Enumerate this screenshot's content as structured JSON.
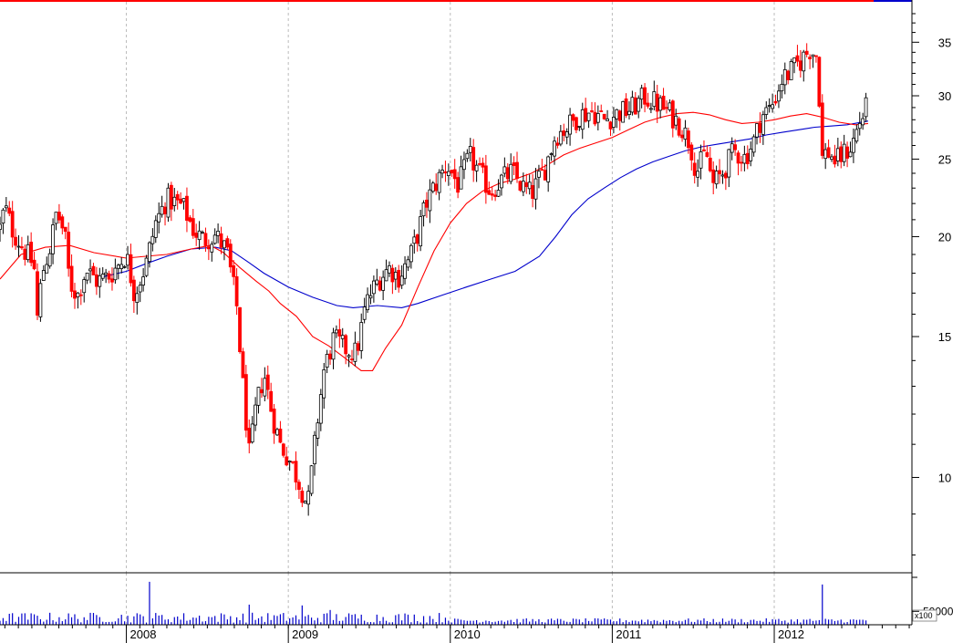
{
  "chart_data": {
    "type": "candlestick",
    "title": "",
    "xlabel": "",
    "ylabel": "",
    "price_scale": "log",
    "ylim": [
      7.6,
      38.5
    ],
    "y_ticks": [
      "10",
      "15",
      "20",
      "25",
      "30",
      "35"
    ],
    "x_range": [
      2007.22,
      2012.85
    ],
    "x_ticks": [
      "2008",
      "2009",
      "2010",
      "2011",
      "2012"
    ],
    "grid": "vertical dashed at year boundaries",
    "colors": {
      "up_candle": "#000000",
      "down_candle": "#ff0000",
      "ma_short": "#ff0000",
      "ma_long": "#0000cc",
      "volume": "#0000cc",
      "grid": "#bbbbbb",
      "top_bar": "#ff0000"
    },
    "price_keypoints": [
      [
        2007.22,
        20.5
      ],
      [
        2007.25,
        21.8
      ],
      [
        2007.3,
        20.3
      ],
      [
        2007.38,
        19.1
      ],
      [
        2007.43,
        18.4
      ],
      [
        2007.45,
        15.8
      ],
      [
        2007.48,
        18.0
      ],
      [
        2007.53,
        19.4
      ],
      [
        2007.57,
        21.5
      ],
      [
        2007.62,
        20.1
      ],
      [
        2007.65,
        17.5
      ],
      [
        2007.7,
        16.9
      ],
      [
        2007.75,
        18.2
      ],
      [
        2007.82,
        17.6
      ],
      [
        2007.9,
        17.9
      ],
      [
        2008.0,
        19.0
      ],
      [
        2008.05,
        17.0
      ],
      [
        2008.12,
        18.4
      ],
      [
        2008.18,
        20.8
      ],
      [
        2008.25,
        22.3
      ],
      [
        2008.35,
        21.8
      ],
      [
        2008.42,
        20.3
      ],
      [
        2008.48,
        19.8
      ],
      [
        2008.55,
        20.1
      ],
      [
        2008.62,
        19.2
      ],
      [
        2008.68,
        16.5
      ],
      [
        2008.72,
        13.0
      ],
      [
        2008.76,
        10.6
      ],
      [
        2008.8,
        12.2
      ],
      [
        2008.85,
        13.5
      ],
      [
        2008.9,
        12.0
      ],
      [
        2008.95,
        11.0
      ],
      [
        2009.02,
        10.4
      ],
      [
        2009.08,
        9.7
      ],
      [
        2009.12,
        9.2
      ],
      [
        2009.18,
        11.8
      ],
      [
        2009.22,
        13.6
      ],
      [
        2009.28,
        14.9
      ],
      [
        2009.35,
        14.5
      ],
      [
        2009.42,
        14.3
      ],
      [
        2009.48,
        16.5
      ],
      [
        2009.55,
        17.6
      ],
      [
        2009.62,
        18.3
      ],
      [
        2009.68,
        17.8
      ],
      [
        2009.75,
        18.8
      ],
      [
        2009.8,
        20.2
      ],
      [
        2009.85,
        22.0
      ],
      [
        2009.92,
        23.5
      ],
      [
        2009.98,
        24.6
      ],
      [
        2010.05,
        23.2
      ],
      [
        2010.12,
        25.2
      ],
      [
        2010.18,
        24.0
      ],
      [
        2010.25,
        22.8
      ],
      [
        2010.32,
        23.6
      ],
      [
        2010.38,
        24.1
      ],
      [
        2010.45,
        23.0
      ],
      [
        2010.5,
        22.6
      ],
      [
        2010.58,
        24.2
      ],
      [
        2010.65,
        26.8
      ],
      [
        2010.72,
        27.4
      ],
      [
        2010.8,
        28.4
      ],
      [
        2010.88,
        28.7
      ],
      [
        2010.95,
        28.0
      ],
      [
        2011.05,
        28.6
      ],
      [
        2011.12,
        28.9
      ],
      [
        2011.2,
        29.9
      ],
      [
        2011.28,
        29.3
      ],
      [
        2011.35,
        28.6
      ],
      [
        2011.42,
        27.6
      ],
      [
        2011.48,
        26.2
      ],
      [
        2011.52,
        24.1
      ],
      [
        2011.58,
        25.5
      ],
      [
        2011.62,
        23.2
      ],
      [
        2011.68,
        24.0
      ],
      [
        2011.75,
        25.6
      ],
      [
        2011.82,
        25.1
      ],
      [
        2011.88,
        26.5
      ],
      [
        2011.92,
        28.3
      ],
      [
        2011.98,
        29.0
      ],
      [
        2012.05,
        31.5
      ],
      [
        2012.12,
        32.4
      ],
      [
        2012.18,
        33.5
      ],
      [
        2012.22,
        34.3
      ],
      [
        2012.27,
        33.6
      ],
      [
        2012.29,
        25.0
      ],
      [
        2012.33,
        25.6
      ],
      [
        2012.38,
        24.8
      ],
      [
        2012.43,
        25.4
      ],
      [
        2012.48,
        26.0
      ],
      [
        2012.52,
        27.6
      ],
      [
        2012.58,
        29.3
      ]
    ],
    "ma_short": [
      [
        2007.22,
        17.7
      ],
      [
        2007.35,
        19.0
      ],
      [
        2007.5,
        19.4
      ],
      [
        2007.65,
        19.5
      ],
      [
        2007.8,
        19.1
      ],
      [
        2008.0,
        18.8
      ],
      [
        2008.12,
        18.9
      ],
      [
        2008.25,
        19.0
      ],
      [
        2008.4,
        19.3
      ],
      [
        2008.52,
        19.5
      ],
      [
        2008.6,
        19.1
      ],
      [
        2008.7,
        18.3
      ],
      [
        2008.8,
        17.6
      ],
      [
        2008.88,
        17.1
      ],
      [
        2008.95,
        16.5
      ],
      [
        2009.05,
        15.9
      ],
      [
        2009.15,
        15.0
      ],
      [
        2009.25,
        14.6
      ],
      [
        2009.35,
        14.1
      ],
      [
        2009.45,
        13.6
      ],
      [
        2009.52,
        13.6
      ],
      [
        2009.6,
        14.5
      ],
      [
        2009.7,
        15.5
      ],
      [
        2009.8,
        17.3
      ],
      [
        2009.9,
        19.2
      ],
      [
        2010.0,
        20.8
      ],
      [
        2010.1,
        22.0
      ],
      [
        2010.2,
        22.8
      ],
      [
        2010.3,
        23.3
      ],
      [
        2010.4,
        23.6
      ],
      [
        2010.5,
        24.0
      ],
      [
        2010.6,
        24.6
      ],
      [
        2010.7,
        25.3
      ],
      [
        2010.8,
        25.8
      ],
      [
        2010.9,
        26.2
      ],
      [
        2011.0,
        26.6
      ],
      [
        2011.1,
        27.2
      ],
      [
        2011.2,
        27.8
      ],
      [
        2011.3,
        28.2
      ],
      [
        2011.4,
        28.5
      ],
      [
        2011.5,
        28.6
      ],
      [
        2011.6,
        28.4
      ],
      [
        2011.7,
        28.0
      ],
      [
        2011.8,
        27.7
      ],
      [
        2011.9,
        27.8
      ],
      [
        2012.0,
        28.0
      ],
      [
        2012.1,
        28.3
      ],
      [
        2012.2,
        28.5
      ],
      [
        2012.3,
        28.2
      ],
      [
        2012.4,
        27.8
      ],
      [
        2012.5,
        27.6
      ],
      [
        2012.58,
        27.7
      ]
    ],
    "ma_long": [
      [
        2007.85,
        17.8
      ],
      [
        2008.0,
        18.1
      ],
      [
        2008.12,
        18.5
      ],
      [
        2008.25,
        18.9
      ],
      [
        2008.4,
        19.3
      ],
      [
        2008.55,
        19.4
      ],
      [
        2008.65,
        19.2
      ],
      [
        2008.75,
        18.6
      ],
      [
        2008.85,
        18.0
      ],
      [
        2009.0,
        17.3
      ],
      [
        2009.15,
        16.8
      ],
      [
        2009.3,
        16.4
      ],
      [
        2009.4,
        16.3
      ],
      [
        2009.55,
        16.4
      ],
      [
        2009.7,
        16.3
      ],
      [
        2009.8,
        16.5
      ],
      [
        2009.95,
        16.9
      ],
      [
        2010.1,
        17.3
      ],
      [
        2010.25,
        17.7
      ],
      [
        2010.4,
        18.1
      ],
      [
        2010.55,
        18.9
      ],
      [
        2010.65,
        20.0
      ],
      [
        2010.75,
        21.3
      ],
      [
        2010.85,
        22.3
      ],
      [
        2010.95,
        23.0
      ],
      [
        2011.05,
        23.7
      ],
      [
        2011.15,
        24.3
      ],
      [
        2011.25,
        24.8
      ],
      [
        2011.35,
        25.2
      ],
      [
        2011.45,
        25.6
      ],
      [
        2011.55,
        25.9
      ],
      [
        2011.65,
        26.1
      ],
      [
        2011.75,
        26.3
      ],
      [
        2011.85,
        26.5
      ],
      [
        2011.95,
        26.8
      ],
      [
        2012.05,
        27.0
      ],
      [
        2012.15,
        27.2
      ],
      [
        2012.25,
        27.4
      ],
      [
        2012.35,
        27.5
      ],
      [
        2012.45,
        27.6
      ],
      [
        2012.58,
        27.9
      ]
    ],
    "volume": {
      "label": "50000",
      "unit": "x100",
      "ylim": [
        0,
        180000
      ],
      "ticks": [
        50000
      ],
      "spikes": [
        [
          2008.15,
          160000
        ],
        [
          2012.29,
          150000
        ],
        [
          2008.75,
          75000
        ],
        [
          2009.08,
          72000
        ],
        [
          2009.25,
          55000
        ]
      ]
    }
  }
}
